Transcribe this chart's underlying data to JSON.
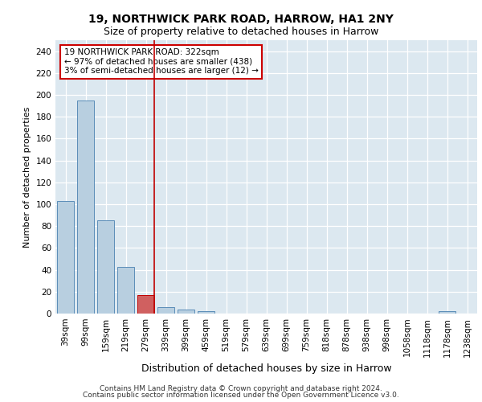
{
  "title1": "19, NORTHWICK PARK ROAD, HARROW, HA1 2NY",
  "title2": "Size of property relative to detached houses in Harrow",
  "xlabel": "Distribution of detached houses by size in Harrow",
  "ylabel": "Number of detached properties",
  "categories": [
    "39sqm",
    "99sqm",
    "159sqm",
    "219sqm",
    "279sqm",
    "339sqm",
    "399sqm",
    "459sqm",
    "519sqm",
    "579sqm",
    "639sqm",
    "699sqm",
    "759sqm",
    "818sqm",
    "878sqm",
    "938sqm",
    "998sqm",
    "1058sqm",
    "1118sqm",
    "1178sqm",
    "1238sqm"
  ],
  "values": [
    103,
    195,
    85,
    43,
    17,
    6,
    4,
    2,
    0,
    0,
    0,
    0,
    0,
    0,
    0,
    0,
    0,
    0,
    0,
    2,
    0
  ],
  "bar_color": "#b8cfe0",
  "bar_edge_color": "#5b8db8",
  "highlight_bar_index": 4,
  "highlight_bar_color": "#d06060",
  "highlight_bar_edge_color": "#c00000",
  "vline_color": "#c00000",
  "annotation_text": "19 NORTHWICK PARK ROAD: 322sqm\n← 97% of detached houses are smaller (438)\n3% of semi-detached houses are larger (12) →",
  "annotation_box_facecolor": "#ffffff",
  "annotation_box_edgecolor": "#cc0000",
  "ylim": [
    0,
    250
  ],
  "yticks": [
    0,
    20,
    40,
    60,
    80,
    100,
    120,
    140,
    160,
    180,
    200,
    220,
    240
  ],
  "background_color": "#dce8f0",
  "grid_color": "#ffffff",
  "footer_line1": "Contains HM Land Registry data © Crown copyright and database right 2024.",
  "footer_line2": "Contains public sector information licensed under the Open Government Licence v3.0.",
  "title1_fontsize": 10,
  "title2_fontsize": 9,
  "xlabel_fontsize": 9,
  "ylabel_fontsize": 8,
  "tick_fontsize": 7.5,
  "annotation_fontsize": 7.5,
  "footer_fontsize": 6.5
}
